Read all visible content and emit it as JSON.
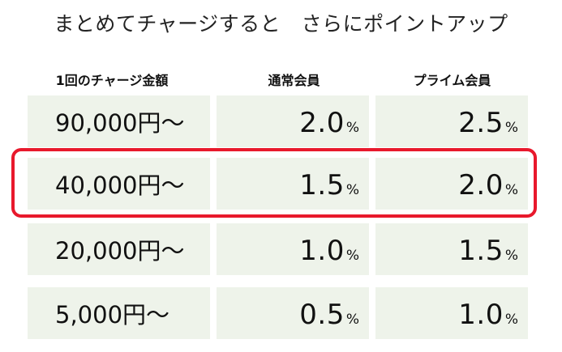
{
  "title": "まとめてチャージすると　さらにポイントアップ",
  "table": {
    "headers": [
      "1回のチャージ金額",
      "通常会員",
      "プライム会員"
    ],
    "rows": [
      {
        "amount": "90,000円〜",
        "regular": "2.0",
        "prime": "2.5"
      },
      {
        "amount": "40,000円〜",
        "regular": "1.5",
        "prime": "2.0"
      },
      {
        "amount": "20,000円〜",
        "regular": "1.0",
        "prime": "1.5"
      },
      {
        "amount": "5,000円〜",
        "regular": "0.5",
        "prime": "1.0"
      }
    ],
    "percent_sign": "%"
  },
  "highlighted_row": 1,
  "colors": {
    "cell_background": "#eef3ea",
    "highlight_border": "#e8192c"
  }
}
